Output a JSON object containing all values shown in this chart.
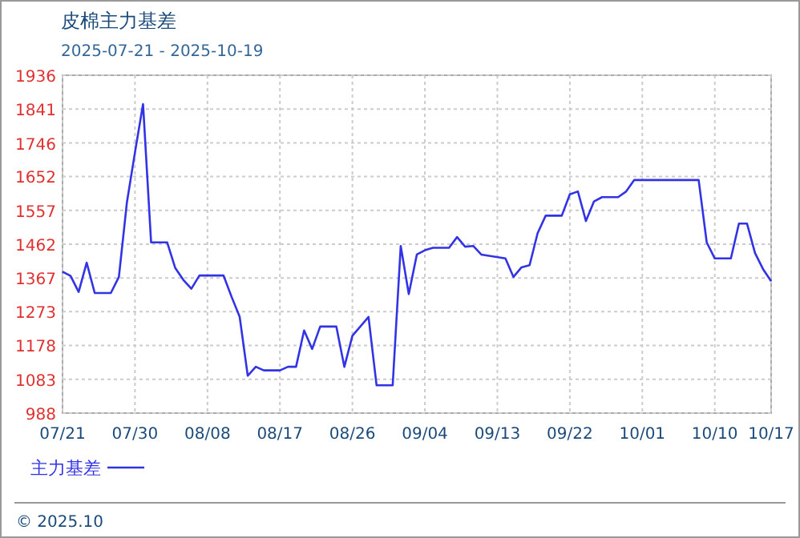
{
  "chart_data": {
    "type": "line",
    "title": "皮棉主力基差",
    "subtitle": "2025-07-21 - 2025-10-19",
    "annotations": [
      "© 2025.10"
    ],
    "x": [
      "2025-07-21",
      "2025-07-22",
      "2025-07-23",
      "2025-07-24",
      "2025-07-25",
      "2025-07-27",
      "2025-07-28",
      "2025-07-29",
      "2025-07-30",
      "2025-07-31",
      "2025-08-01",
      "2025-08-03",
      "2025-08-04",
      "2025-08-05",
      "2025-08-06",
      "2025-08-07",
      "2025-08-10",
      "2025-08-11",
      "2025-08-12",
      "2025-08-13",
      "2025-08-14",
      "2025-08-15",
      "2025-08-17",
      "2025-08-18",
      "2025-08-19",
      "2025-08-20",
      "2025-08-21",
      "2025-08-22",
      "2025-08-24",
      "2025-08-25",
      "2025-08-26",
      "2025-08-28",
      "2025-08-29",
      "2025-08-31",
      "2025-09-01",
      "2025-09-02",
      "2025-09-03",
      "2025-09-04",
      "2025-09-05",
      "2025-09-07",
      "2025-09-08",
      "2025-09-09",
      "2025-09-10",
      "2025-09-11",
      "2025-09-14",
      "2025-09-15",
      "2025-09-16",
      "2025-09-17",
      "2025-09-18",
      "2025-09-19",
      "2025-09-21",
      "2025-09-22",
      "2025-09-23",
      "2025-09-24",
      "2025-09-25",
      "2025-09-26",
      "2025-09-28",
      "2025-09-29",
      "2025-09-30",
      "2025-10-08",
      "2025-10-09",
      "2025-10-10",
      "2025-10-12",
      "2025-10-13",
      "2025-10-14",
      "2025-10-15",
      "2025-10-16",
      "2025-10-17"
    ],
    "series": [
      {
        "name": "主力基差",
        "color": "#3333e6",
        "values": [
          1385,
          1373,
          1328,
          1410,
          1325,
          1325,
          1370,
          1580,
          1720,
          1855,
          1467,
          1467,
          1395,
          1362,
          1337,
          1374,
          1374,
          1314,
          1258,
          1093,
          1118,
          1108,
          1108,
          1118,
          1118,
          1220,
          1168,
          1231,
          1231,
          1118,
          1205,
          1258,
          1066,
          1066,
          1457,
          1322,
          1433,
          1445,
          1452,
          1452,
          1482,
          1455,
          1457,
          1433,
          1422,
          1370,
          1397,
          1403,
          1493,
          1542,
          1542,
          1602,
          1610,
          1527,
          1582,
          1594,
          1594,
          1610,
          1642,
          1642,
          1467,
          1422,
          1422,
          1520,
          1520,
          1437,
          1392,
          1358
        ]
      }
    ],
    "xlim": [
      "2025-07-21",
      "2025-10-17"
    ],
    "xticks": [
      {
        "value": "2025-07-21",
        "label": "07/21"
      },
      {
        "value": "2025-07-30",
        "label": "07/30"
      },
      {
        "value": "2025-08-08",
        "label": "08/08"
      },
      {
        "value": "2025-08-17",
        "label": "08/17"
      },
      {
        "value": "2025-08-26",
        "label": "08/26"
      },
      {
        "value": "2025-09-04",
        "label": "09/04"
      },
      {
        "value": "2025-09-13",
        "label": "09/13"
      },
      {
        "value": "2025-09-22",
        "label": "09/22"
      },
      {
        "value": "2025-10-01",
        "label": "10/01"
      },
      {
        "value": "2025-10-10",
        "label": "10/10"
      },
      {
        "value": "2025-10-17",
        "label": "10/17"
      }
    ],
    "ylim": [
      988,
      1936
    ],
    "yticks": [
      988,
      1083,
      1178,
      1273,
      1367,
      1462,
      1557,
      1652,
      1746,
      1841,
      1936
    ],
    "grid": true,
    "legend": "bottom left",
    "marker": "none",
    "line_style": "solid"
  }
}
